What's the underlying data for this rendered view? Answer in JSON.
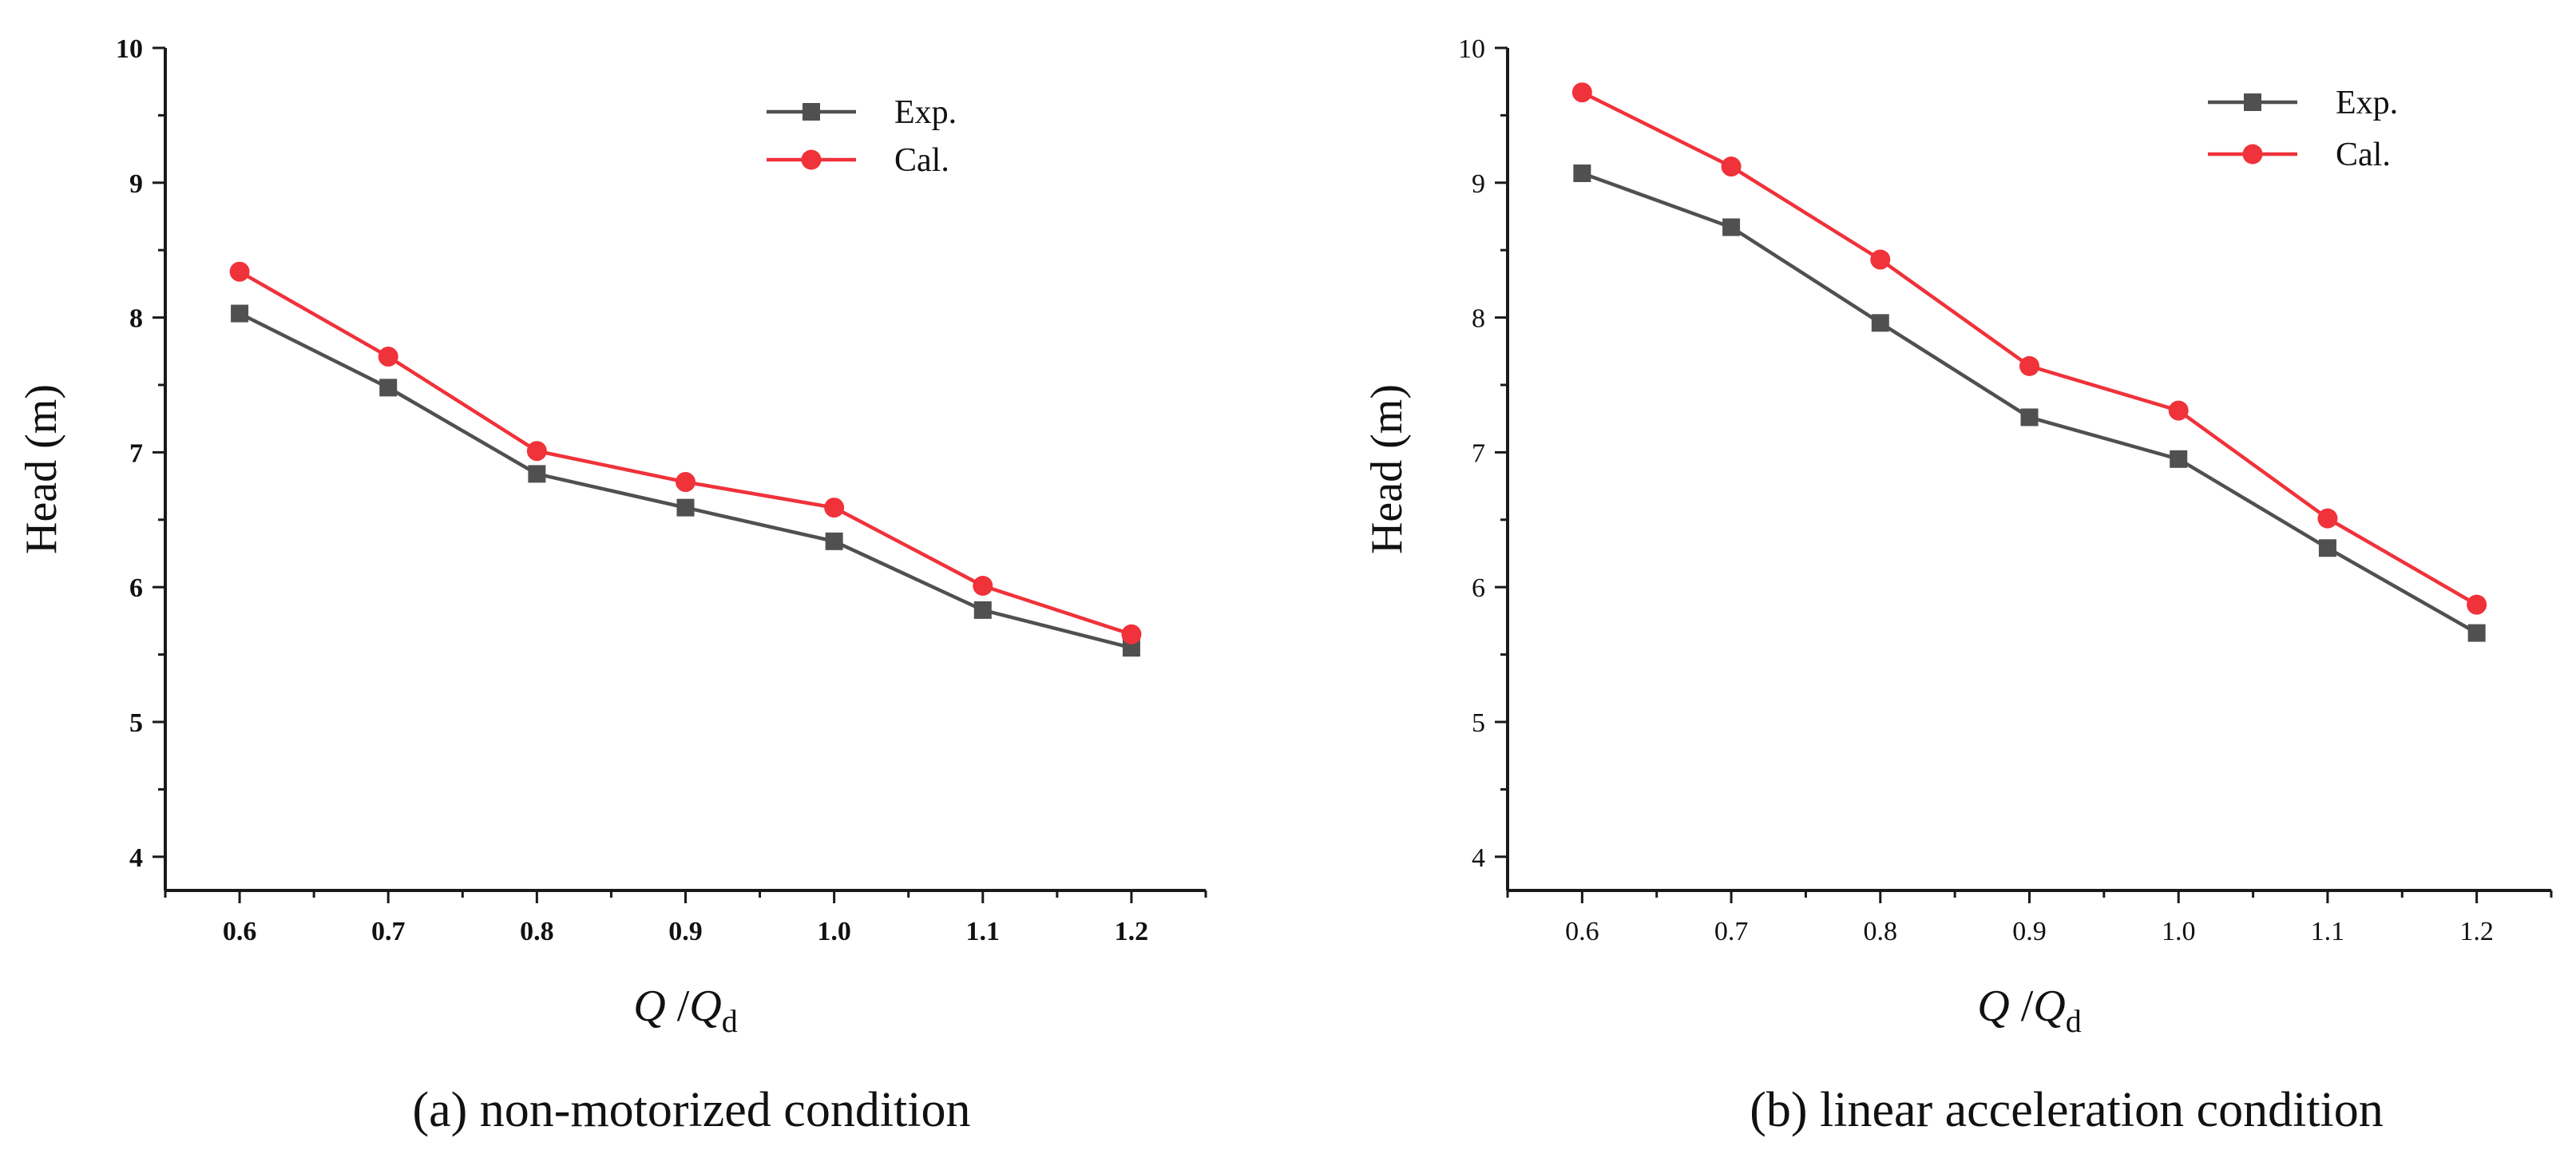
{
  "colors": {
    "exp": "#505050",
    "cal": "#f0323a",
    "axis": "#1a1a1a"
  },
  "chart_data": [
    {
      "type": "line",
      "caption": "(a) non-motorized condition",
      "xlabel": "Q /Qd",
      "ylabel": "Head (m)",
      "x": [
        0.6,
        0.7,
        0.8,
        0.9,
        1.0,
        1.1,
        1.2
      ],
      "x_tick_labels": [
        "0.6",
        "0.7",
        "0.8",
        "0.9",
        "1.0",
        "1.1",
        "1.2"
      ],
      "y_tick_labels": [
        "4",
        "5",
        "6",
        "7",
        "8",
        "9",
        "10"
      ],
      "xlim": [
        0.55,
        1.25
      ],
      "ylim": [
        3.75,
        10
      ],
      "tick_labels_bold": true,
      "legend_position": "top-center",
      "grid": false,
      "series": [
        {
          "name": "Exp.",
          "marker": "square",
          "values": [
            8.03,
            7.48,
            6.84,
            6.59,
            6.34,
            5.83,
            5.55
          ]
        },
        {
          "name": "Cal.",
          "marker": "circle",
          "values": [
            8.34,
            7.71,
            7.01,
            6.78,
            6.59,
            6.01,
            5.65
          ]
        }
      ]
    },
    {
      "type": "line",
      "caption": "(b) linear acceleration condition",
      "xlabel": "Q /Qd",
      "ylabel": "Head (m)",
      "x": [
        0.6,
        0.7,
        0.8,
        0.9,
        1.0,
        1.1,
        1.2
      ],
      "x_tick_labels": [
        "0.6",
        "0.7",
        "0.8",
        "0.9",
        "1.0",
        "1.1",
        "1.2"
      ],
      "y_tick_labels": [
        "4",
        "5",
        "6",
        "7",
        "8",
        "9",
        "10"
      ],
      "xlim": [
        0.55,
        1.25
      ],
      "ylim": [
        3.75,
        10
      ],
      "tick_labels_bold": false,
      "legend_position": "top-right",
      "grid": false,
      "series": [
        {
          "name": "Exp.",
          "marker": "square",
          "values": [
            9.07,
            8.67,
            7.96,
            7.26,
            6.95,
            6.29,
            5.66
          ]
        },
        {
          "name": "Cal.",
          "marker": "circle",
          "values": [
            9.67,
            9.12,
            8.43,
            7.64,
            7.31,
            6.51,
            5.87
          ]
        }
      ]
    }
  ]
}
